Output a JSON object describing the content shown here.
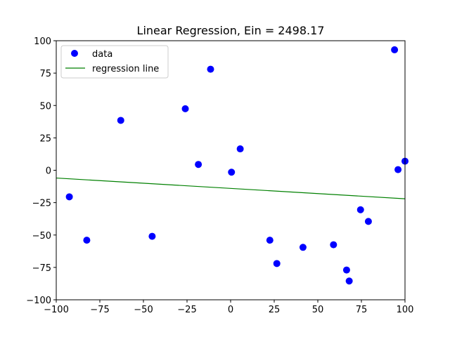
{
  "chart_data": {
    "type": "scatter",
    "title": "Linear Regression, Ein = 2498.17",
    "xlabel": "",
    "ylabel": "",
    "xlim": [
      -100,
      100
    ],
    "ylim": [
      -100,
      100
    ],
    "xticks": [
      -100,
      -75,
      -50,
      -25,
      0,
      25,
      50,
      75,
      100
    ],
    "yticks": [
      -100,
      -75,
      -50,
      -25,
      0,
      25,
      50,
      75,
      100
    ],
    "xtick_labels": [
      "−100",
      "−75",
      "−50",
      "−25",
      "0",
      "25",
      "50",
      "75",
      "100"
    ],
    "ytick_labels": [
      "−100",
      "−75",
      "−50",
      "−25",
      "0",
      "25",
      "50",
      "75",
      "100"
    ],
    "grid": false,
    "legend_position": "top-left",
    "legend": [
      {
        "label": "data",
        "kind": "marker",
        "color": "#0000ff"
      },
      {
        "label": "regression line",
        "kind": "line",
        "color": "#008000"
      }
    ],
    "series": [
      {
        "name": "data",
        "kind": "scatter",
        "color": "#0000ff",
        "points": [
          [
            -92.5,
            -20.5
          ],
          [
            -82.5,
            -54
          ],
          [
            -63,
            38.5
          ],
          [
            -45,
            -51
          ],
          [
            -26,
            47.5
          ],
          [
            -18.5,
            4.5
          ],
          [
            -11.5,
            78
          ],
          [
            0.5,
            -1.5
          ],
          [
            5.5,
            16.5
          ],
          [
            22.5,
            -54
          ],
          [
            26.5,
            -72
          ],
          [
            41.5,
            -59.5
          ],
          [
            59,
            -57.5
          ],
          [
            66.5,
            -77
          ],
          [
            68,
            -85.5
          ],
          [
            74.5,
            -30.5
          ],
          [
            79,
            -39.5
          ],
          [
            94,
            93
          ],
          [
            96,
            0.5
          ],
          [
            100,
            7
          ]
        ]
      },
      {
        "name": "regression line",
        "kind": "line",
        "color": "#008000",
        "points": [
          [
            -100,
            -6
          ],
          [
            100,
            -22
          ]
        ]
      }
    ]
  }
}
